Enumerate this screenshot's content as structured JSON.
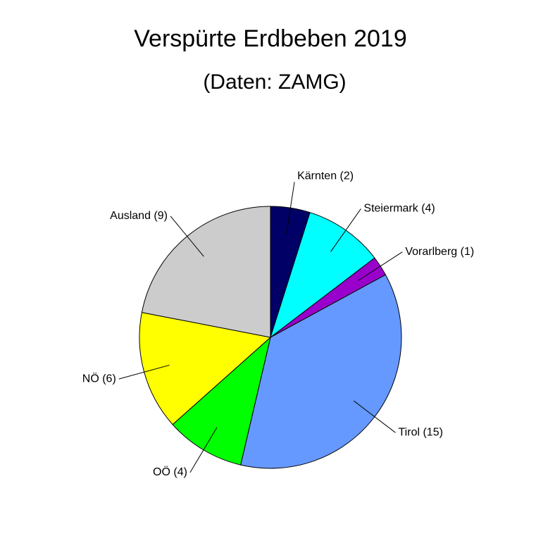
{
  "chart_data": {
    "type": "pie",
    "title": "Verspürte Erdbeben 2019",
    "subtitle": "(Daten: ZAMG)",
    "categories": [
      "Kärnten",
      "Steiermark",
      "Vorarlberg",
      "Tirol",
      "OÖ",
      "NÖ",
      "Ausland"
    ],
    "values": [
      2,
      4,
      1,
      15,
      4,
      6,
      9
    ],
    "labels": [
      "Kärnten (2)",
      "Steiermark (4)",
      "Vorarlberg (1)",
      "Tirol (15)",
      "OÖ (4)",
      "NÖ (6)",
      "Ausland (9)"
    ],
    "colors": [
      "#000066",
      "#00ffff",
      "#9900cc",
      "#6699ff",
      "#00ff00",
      "#ffff00",
      "#cccccc"
    ],
    "direction": "clockwise",
    "start": "top"
  }
}
